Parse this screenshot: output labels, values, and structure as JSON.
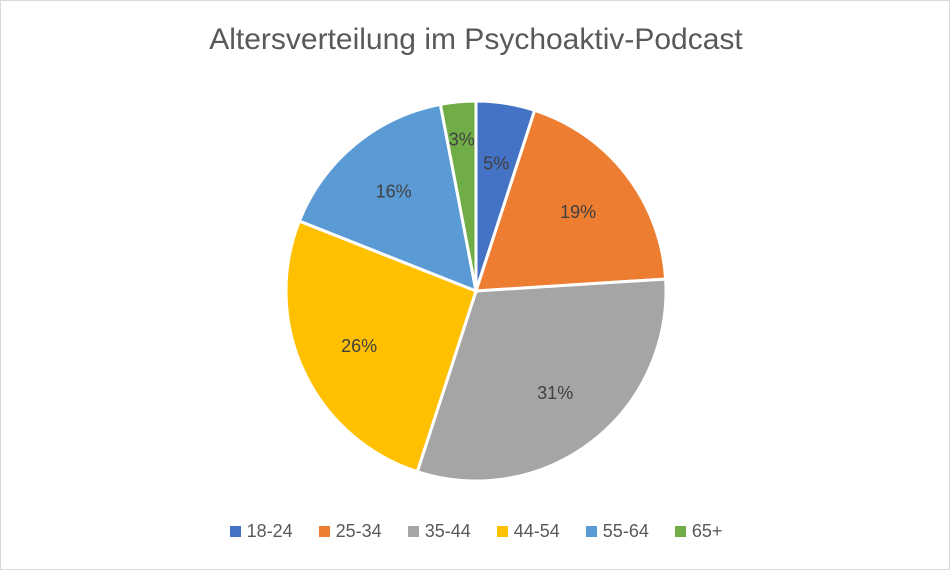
{
  "chart_data": {
    "type": "pie",
    "title": "Altersverteilung im Psychoaktiv-Podcast",
    "categories": [
      "18-24",
      "25-34",
      "35-44",
      "44-54",
      "55-64",
      "65+"
    ],
    "values": [
      5,
      19,
      31,
      26,
      16,
      3
    ],
    "data_labels": [
      "5%",
      "19%",
      "31%",
      "26%",
      "16%",
      "3%"
    ],
    "colors": [
      "#4472C4",
      "#ED7D31",
      "#A5A5A5",
      "#FFC000",
      "#5B9BD5",
      "#70AD47"
    ],
    "legend_position": "bottom"
  }
}
